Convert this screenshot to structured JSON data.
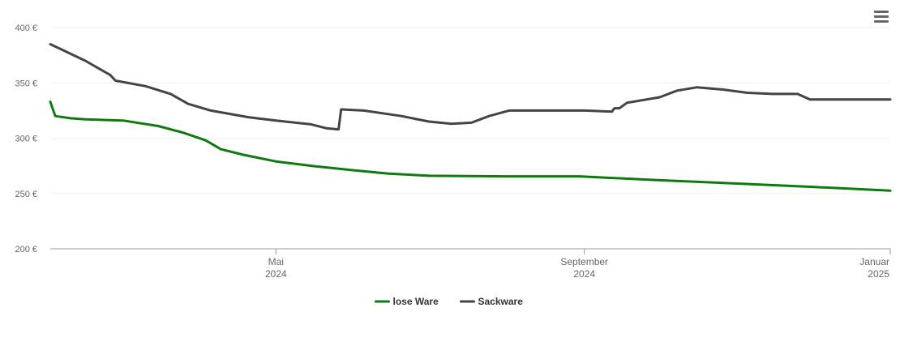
{
  "menu_icon": "hamburger-menu-icon",
  "chart_data": {
    "type": "line",
    "title": "",
    "xlabel": "",
    "ylabel": "",
    "ylim": [
      200,
      400
    ],
    "xlim": [
      "2024-02-01",
      "2025-01-01"
    ],
    "yticks": [
      "200 €",
      "250 €",
      "300 €",
      "350 €",
      "400 €"
    ],
    "ytick_values": [
      200,
      250,
      300,
      350,
      400
    ],
    "xticks": [
      {
        "date": "2024-05-01",
        "line1": "Mai",
        "line2": "2024"
      },
      {
        "date": "2024-09-01",
        "line1": "September",
        "line2": "2024"
      },
      {
        "date": "2025-01-01",
        "line1": "Januar",
        "line2": "2025"
      }
    ],
    "grid": true,
    "legend_position": "bottom-center",
    "series": [
      {
        "name": "lose Ware",
        "color": "#0f7a0f",
        "points": [
          [
            "2024-02-01",
            333
          ],
          [
            "2024-02-03",
            320
          ],
          [
            "2024-02-09",
            318
          ],
          [
            "2024-02-15",
            317
          ],
          [
            "2024-03-01",
            316
          ],
          [
            "2024-03-15",
            311
          ],
          [
            "2024-03-25",
            305
          ],
          [
            "2024-04-03",
            298
          ],
          [
            "2024-04-09",
            290
          ],
          [
            "2024-04-18",
            285
          ],
          [
            "2024-05-01",
            279
          ],
          [
            "2024-05-15",
            275
          ],
          [
            "2024-06-01",
            271
          ],
          [
            "2024-06-15",
            268
          ],
          [
            "2024-07-01",
            266
          ],
          [
            "2024-08-01",
            265.5
          ],
          [
            "2024-08-30",
            265.5
          ],
          [
            "2024-10-01",
            262
          ],
          [
            "2024-11-01",
            259
          ],
          [
            "2024-12-01",
            256
          ],
          [
            "2025-01-01",
            252.5
          ]
        ]
      },
      {
        "name": "Sackware",
        "color": "#434348",
        "points": [
          [
            "2024-02-01",
            385
          ],
          [
            "2024-02-15",
            370
          ],
          [
            "2024-02-25",
            357
          ],
          [
            "2024-02-27",
            352
          ],
          [
            "2024-03-10",
            347
          ],
          [
            "2024-03-20",
            340
          ],
          [
            "2024-03-27",
            331
          ],
          [
            "2024-04-05",
            325
          ],
          [
            "2024-04-20",
            319
          ],
          [
            "2024-05-01",
            316
          ],
          [
            "2024-05-15",
            312.5
          ],
          [
            "2024-05-21",
            309
          ],
          [
            "2024-05-26",
            308
          ],
          [
            "2024-05-27",
            326
          ],
          [
            "2024-06-05",
            325
          ],
          [
            "2024-06-20",
            320
          ],
          [
            "2024-07-01",
            315
          ],
          [
            "2024-07-10",
            313
          ],
          [
            "2024-07-18",
            314
          ],
          [
            "2024-07-25",
            320
          ],
          [
            "2024-08-02",
            325
          ],
          [
            "2024-08-15",
            325
          ],
          [
            "2024-09-01",
            325
          ],
          [
            "2024-09-12",
            324
          ],
          [
            "2024-09-13",
            327
          ],
          [
            "2024-09-15",
            327
          ],
          [
            "2024-09-18",
            332
          ],
          [
            "2024-10-01",
            337
          ],
          [
            "2024-10-08",
            343
          ],
          [
            "2024-10-16",
            346
          ],
          [
            "2024-10-26",
            344
          ],
          [
            "2024-11-05",
            341
          ],
          [
            "2024-11-15",
            340
          ],
          [
            "2024-11-25",
            340
          ],
          [
            "2024-11-30",
            335
          ],
          [
            "2024-12-15",
            335
          ],
          [
            "2025-01-01",
            335
          ]
        ]
      }
    ]
  }
}
